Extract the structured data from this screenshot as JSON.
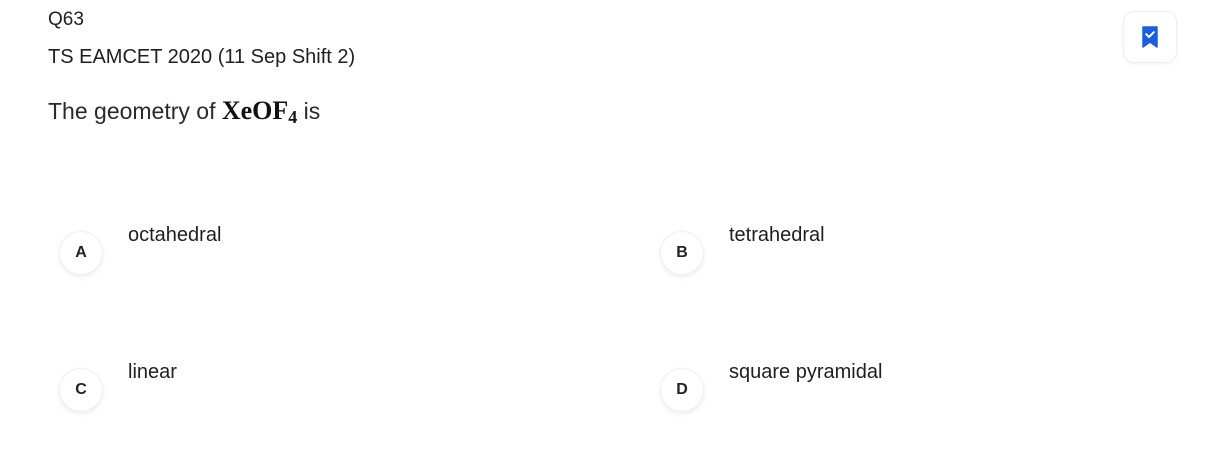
{
  "question": {
    "number": "Q63",
    "exam": "TS EAMCET 2020 (11 Sep Shift 2)",
    "text_before": "The geometry of ",
    "formula_main": "XeOF",
    "formula_sub": "4",
    "text_after": " is"
  },
  "bookmark": {
    "icon": "bookmark-check-icon",
    "color": "#1a5fe0"
  },
  "options": [
    {
      "letter": "A",
      "text": "octahedral"
    },
    {
      "letter": "B",
      "text": "tetrahedral"
    },
    {
      "letter": "C",
      "text": "linear"
    },
    {
      "letter": "D",
      "text": "square pyramidal"
    }
  ]
}
